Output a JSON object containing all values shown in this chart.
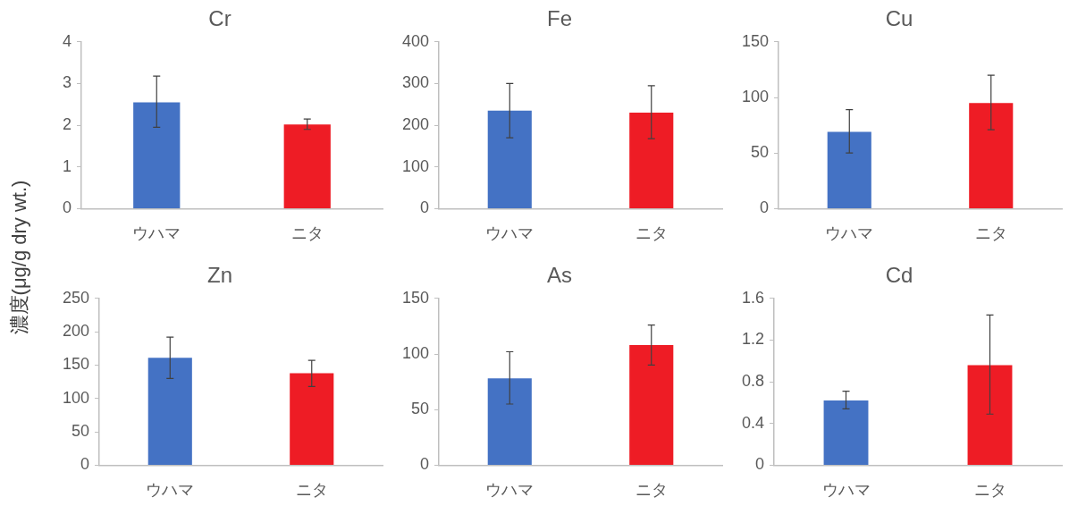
{
  "chart_data": [
    {
      "type": "bar",
      "title": "Cr",
      "ylabel": "濃度(μg/g dry wt.)",
      "categories": [
        "ウハマ",
        "ニタ"
      ],
      "values": [
        2.55,
        2.02
      ],
      "colors": [
        "#4472c4",
        "#ee1c25"
      ],
      "errors": [
        [
          1.95,
          3.18
        ],
        [
          1.9,
          2.15
        ]
      ],
      "ylim": [
        0,
        4
      ],
      "yticks": [
        0,
        1,
        2,
        3,
        4
      ]
    },
    {
      "type": "bar",
      "title": "Fe",
      "categories": [
        "ウハマ",
        "ニタ"
      ],
      "values": [
        235,
        230
      ],
      "colors": [
        "#4472c4",
        "#ee1c25"
      ],
      "errors": [
        [
          170,
          300
        ],
        [
          168,
          295
        ]
      ],
      "ylim": [
        0,
        400
      ],
      "yticks": [
        0,
        100,
        200,
        300,
        400
      ]
    },
    {
      "type": "bar",
      "title": "Cu",
      "categories": [
        "ウハマ",
        "ニタ"
      ],
      "values": [
        69,
        95
      ],
      "colors": [
        "#4472c4",
        "#ee1c25"
      ],
      "errors": [
        [
          50,
          89
        ],
        [
          71,
          120
        ]
      ],
      "ylim": [
        0,
        150
      ],
      "yticks": [
        0,
        50,
        100,
        150
      ]
    },
    {
      "type": "bar",
      "title": "Zn",
      "categories": [
        "ウハマ",
        "ニタ"
      ],
      "values": [
        161,
        138
      ],
      "colors": [
        "#4472c4",
        "#ee1c25"
      ],
      "errors": [
        [
          130,
          192
        ],
        [
          118,
          157
        ]
      ],
      "ylim": [
        0,
        250
      ],
      "yticks": [
        0,
        50,
        100,
        150,
        200,
        250
      ]
    },
    {
      "type": "bar",
      "title": "As",
      "categories": [
        "ウハマ",
        "ニタ"
      ],
      "values": [
        78,
        108
      ],
      "colors": [
        "#4472c4",
        "#ee1c25"
      ],
      "errors": [
        [
          55,
          102
        ],
        [
          90,
          126
        ]
      ],
      "ylim": [
        0,
        150
      ],
      "yticks": [
        0,
        50,
        100,
        150
      ]
    },
    {
      "type": "bar",
      "title": "Cd",
      "categories": [
        "ウハマ",
        "ニタ"
      ],
      "values": [
        0.62,
        0.96
      ],
      "colors": [
        "#4472c4",
        "#ee1c25"
      ],
      "errors": [
        [
          0.54,
          0.71
        ],
        [
          0.49,
          1.44
        ]
      ],
      "ylim": [
        0,
        1.6
      ],
      "yticks": [
        {
          "value": 0,
          "label": "0"
        },
        {
          "value": 0.4,
          "label": "0.4"
        },
        {
          "value": 0.8,
          "label": "0.8"
        },
        {
          "value": 1.2,
          "label": "1.2"
        },
        {
          "value": 1.6,
          "label": "1.6"
        }
      ]
    }
  ]
}
